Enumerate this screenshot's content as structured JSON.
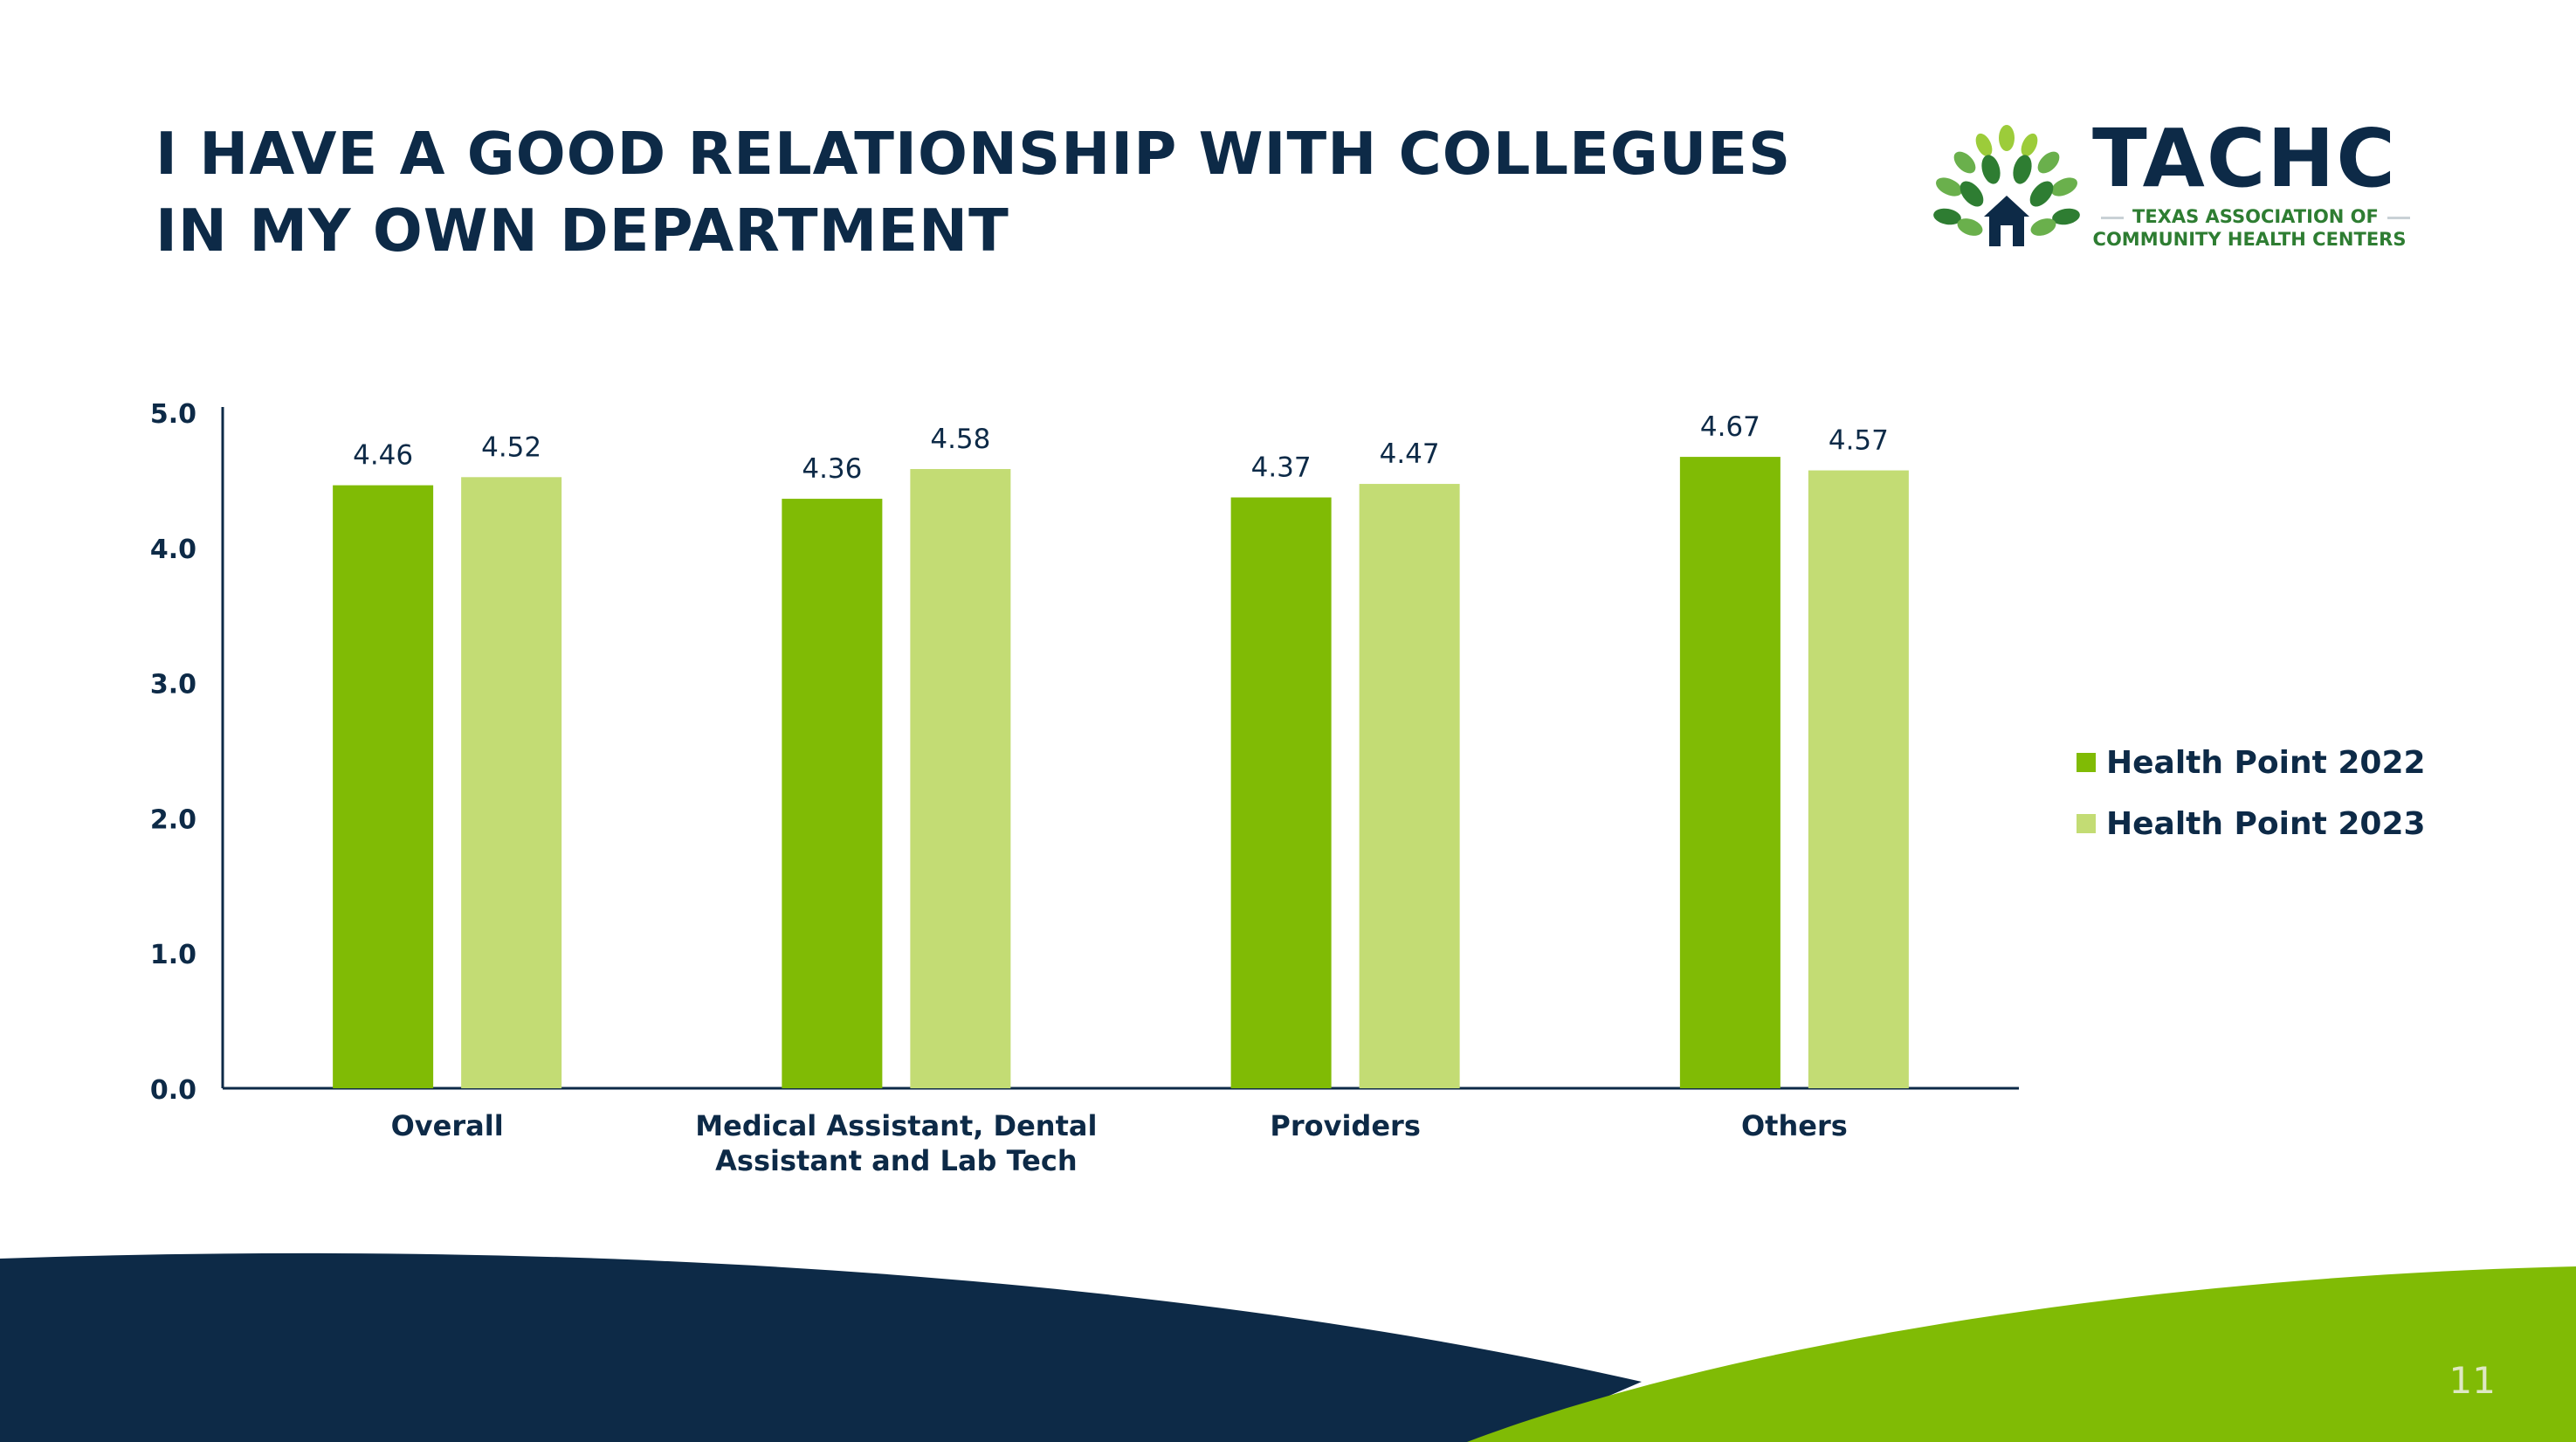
{
  "slide": {
    "title_lines": [
      "I HAVE A GOOD RELATIONSHIP WITH COLLEGUES",
      "IN MY OWN DEPARTMENT"
    ],
    "page_number": "11"
  },
  "logo": {
    "wordmark": "TACHC",
    "subtitle_line1": "TEXAS ASSOCIATION OF",
    "subtitle_line2": "COMMUNITY HEALTH CENTERS"
  },
  "colors": {
    "title": "#0d2a47",
    "series_2022": "#80bb05",
    "series_2023": "#c3dc74",
    "footer_navy": "#0d2a47",
    "footer_green": "#80bb05"
  },
  "chart_data": {
    "type": "bar",
    "categories": [
      "Overall",
      "Medical Assistant, Dental Assistant and Lab Tech",
      "Providers",
      "Others"
    ],
    "category_lines": [
      [
        "Overall"
      ],
      [
        "Medical Assistant, Dental",
        "Assistant and Lab Tech"
      ],
      [
        "Providers"
      ],
      [
        "Others"
      ]
    ],
    "series": [
      {
        "name": "Health Point 2022",
        "values": [
          4.46,
          4.36,
          4.37,
          4.67
        ],
        "labels": [
          "4.46",
          "4.36",
          "4.37",
          "4.67"
        ],
        "color": "#80bb05"
      },
      {
        "name": "Health Point 2023",
        "values": [
          4.52,
          4.58,
          4.47,
          4.57
        ],
        "labels": [
          "4.52",
          "4.58",
          "4.47",
          "4.57"
        ],
        "color": "#c3dc74"
      }
    ],
    "ylim": [
      0,
      5
    ],
    "yticks": [
      "0.0",
      "1.0",
      "2.0",
      "3.0",
      "4.0",
      "5.0"
    ],
    "legend_position": "right",
    "grid": false
  }
}
